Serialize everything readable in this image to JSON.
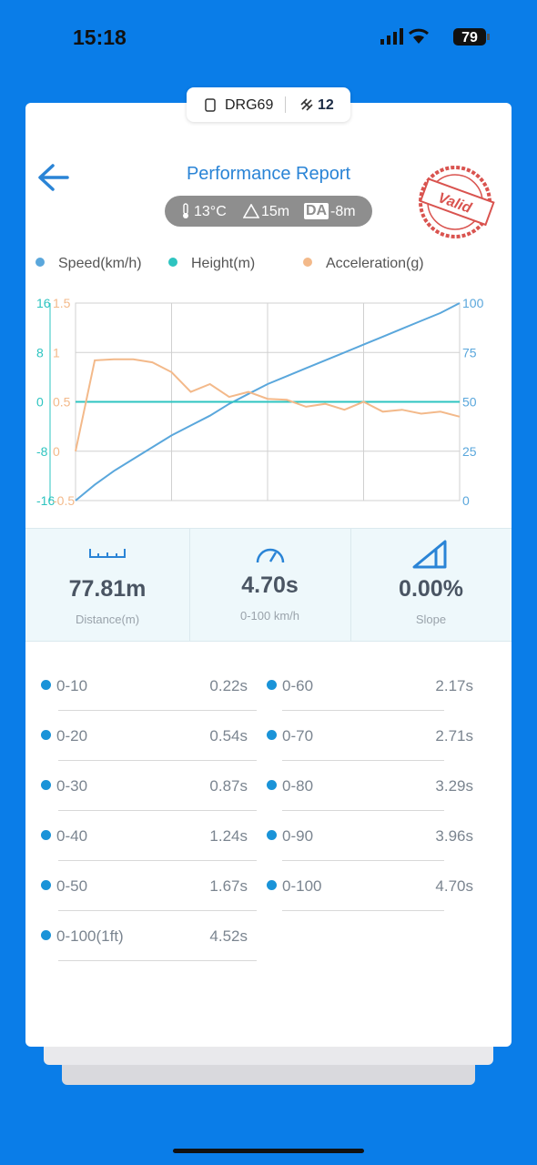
{
  "status_bar": {
    "time": "15:18",
    "battery": "79"
  },
  "device_pill": {
    "device": "DRG69",
    "satellites": "12"
  },
  "header": {
    "title": "Performance Report",
    "stamp": "Valid"
  },
  "conditions": {
    "temperature": "13°C",
    "altitude": "15m",
    "da_label": "DA",
    "density_altitude": "-8m"
  },
  "chart_data": {
    "type": "line",
    "categories": [
      null,
      null,
      null,
      null,
      null,
      null,
      null,
      null,
      null,
      null,
      null,
      null,
      null,
      null,
      null,
      null,
      null,
      null,
      null,
      null,
      null
    ],
    "series": [
      {
        "name": "Speed(km/h)",
        "color": "#5aa7dc",
        "axis": "y3",
        "values": [
          0,
          8,
          15,
          21,
          27,
          33,
          38,
          43,
          49,
          54,
          59,
          63,
          67,
          71,
          75,
          79,
          83,
          87,
          91,
          95,
          100
        ]
      },
      {
        "name": "Height(m)",
        "color": "#2ec4c0",
        "axis": "y",
        "values": [
          0,
          0,
          0,
          0,
          0,
          0,
          0,
          0,
          0,
          0,
          0,
          0,
          0,
          0,
          0,
          0,
          0,
          0,
          0,
          0,
          0
        ]
      },
      {
        "name": "Acceleration(g)",
        "color": "#f3b98a",
        "axis": "y2",
        "values": [
          0,
          0.92,
          0.93,
          0.93,
          0.9,
          0.8,
          0.6,
          0.68,
          0.55,
          0.6,
          0.53,
          0.52,
          0.45,
          0.48,
          0.42,
          0.5,
          0.4,
          0.42,
          0.38,
          0.4,
          0.35
        ]
      }
    ],
    "ylim": [
      -16,
      16
    ],
    "yticks": [
      -16,
      -8,
      0,
      8,
      16
    ],
    "y2lim": [
      -0.5,
      1.5
    ],
    "y2ticks": [
      -0.5,
      0,
      0.5,
      1,
      1.5
    ],
    "y3lim": [
      0,
      100
    ],
    "y3ticks": [
      0,
      25,
      50,
      75,
      100
    ],
    "grid": true
  },
  "stats": [
    {
      "value": "77.81m",
      "label": "Distance(m)"
    },
    {
      "value": "4.70s",
      "label": "0-100 km/h"
    },
    {
      "value": "0.00%",
      "label": "Slope"
    }
  ],
  "splits": {
    "left": [
      [
        "0-10",
        "0.22s"
      ],
      [
        "0-20",
        "0.54s"
      ],
      [
        "0-30",
        "0.87s"
      ],
      [
        "0-40",
        "1.24s"
      ],
      [
        "0-50",
        "1.67s"
      ],
      [
        "0-100(1ft)",
        "4.52s"
      ]
    ],
    "right": [
      [
        "0-60",
        "2.17s"
      ],
      [
        "0-70",
        "2.71s"
      ],
      [
        "0-80",
        "3.29s"
      ],
      [
        "0-90",
        "3.96s"
      ],
      [
        "0-100",
        "4.70s"
      ]
    ]
  }
}
